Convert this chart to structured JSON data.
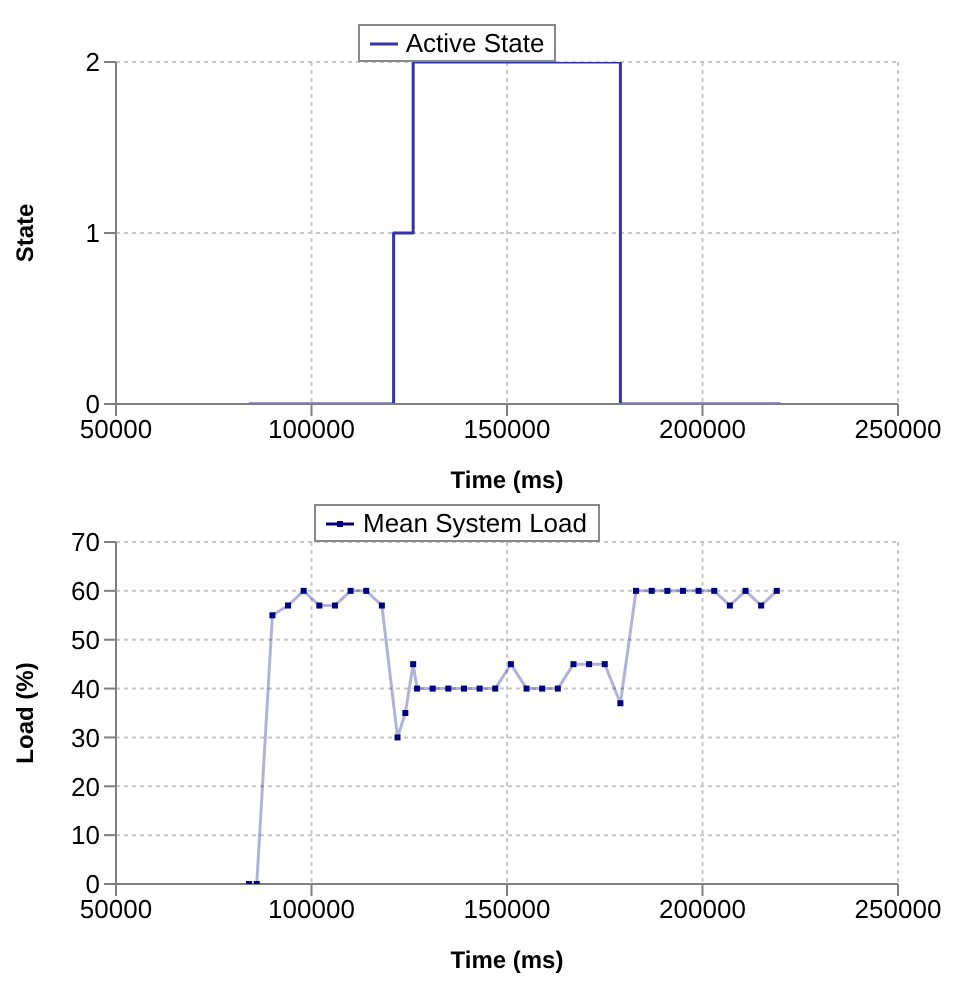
{
  "chart_data": [
    {
      "type": "step",
      "xlabel": "Time (ms)",
      "ylabel": "State",
      "xlim": [
        50000,
        250000
      ],
      "xticks": [
        50000,
        100000,
        150000,
        200000,
        250000
      ],
      "ylim": [
        0,
        2
      ],
      "yticks": [
        0,
        1,
        2
      ],
      "grid": true,
      "legend": "top",
      "marker": "none",
      "series": [
        {
          "name": "Active State",
          "color": "#3333aa",
          "x": [
            84000,
            121000,
            126000,
            179000,
            220000
          ],
          "values": [
            0,
            1,
            2,
            0,
            0
          ]
        }
      ]
    },
    {
      "type": "line",
      "xlabel": "Time (ms)",
      "ylabel": "Load (%)",
      "xlim": [
        50000,
        250000
      ],
      "xticks": [
        50000,
        100000,
        150000,
        200000,
        250000
      ],
      "ylim": [
        0,
        70
      ],
      "yticks": [
        0,
        10,
        20,
        30,
        40,
        50,
        60,
        70
      ],
      "grid": true,
      "legend": "top",
      "marker": "square",
      "series": [
        {
          "name": "Mean System Load",
          "color": "#000080",
          "x": [
            84000,
            86000,
            90000,
            94000,
            98000,
            102000,
            106000,
            110000,
            114000,
            118000,
            122000,
            124000,
            126000,
            127000,
            131000,
            135000,
            139000,
            143000,
            147000,
            151000,
            155000,
            159000,
            163000,
            167000,
            171000,
            175000,
            179000,
            183000,
            187000,
            191000,
            195000,
            199000,
            203000,
            207000,
            211000,
            215000,
            219000
          ],
          "values": [
            0,
            0,
            55,
            57,
            60,
            57,
            57,
            60,
            60,
            57,
            30,
            35,
            45,
            40,
            40,
            40,
            40,
            40,
            40,
            45,
            40,
            40,
            40,
            45,
            45,
            45,
            37,
            60,
            60,
            60,
            60,
            60,
            60,
            57,
            60,
            57,
            60
          ]
        }
      ]
    }
  ]
}
